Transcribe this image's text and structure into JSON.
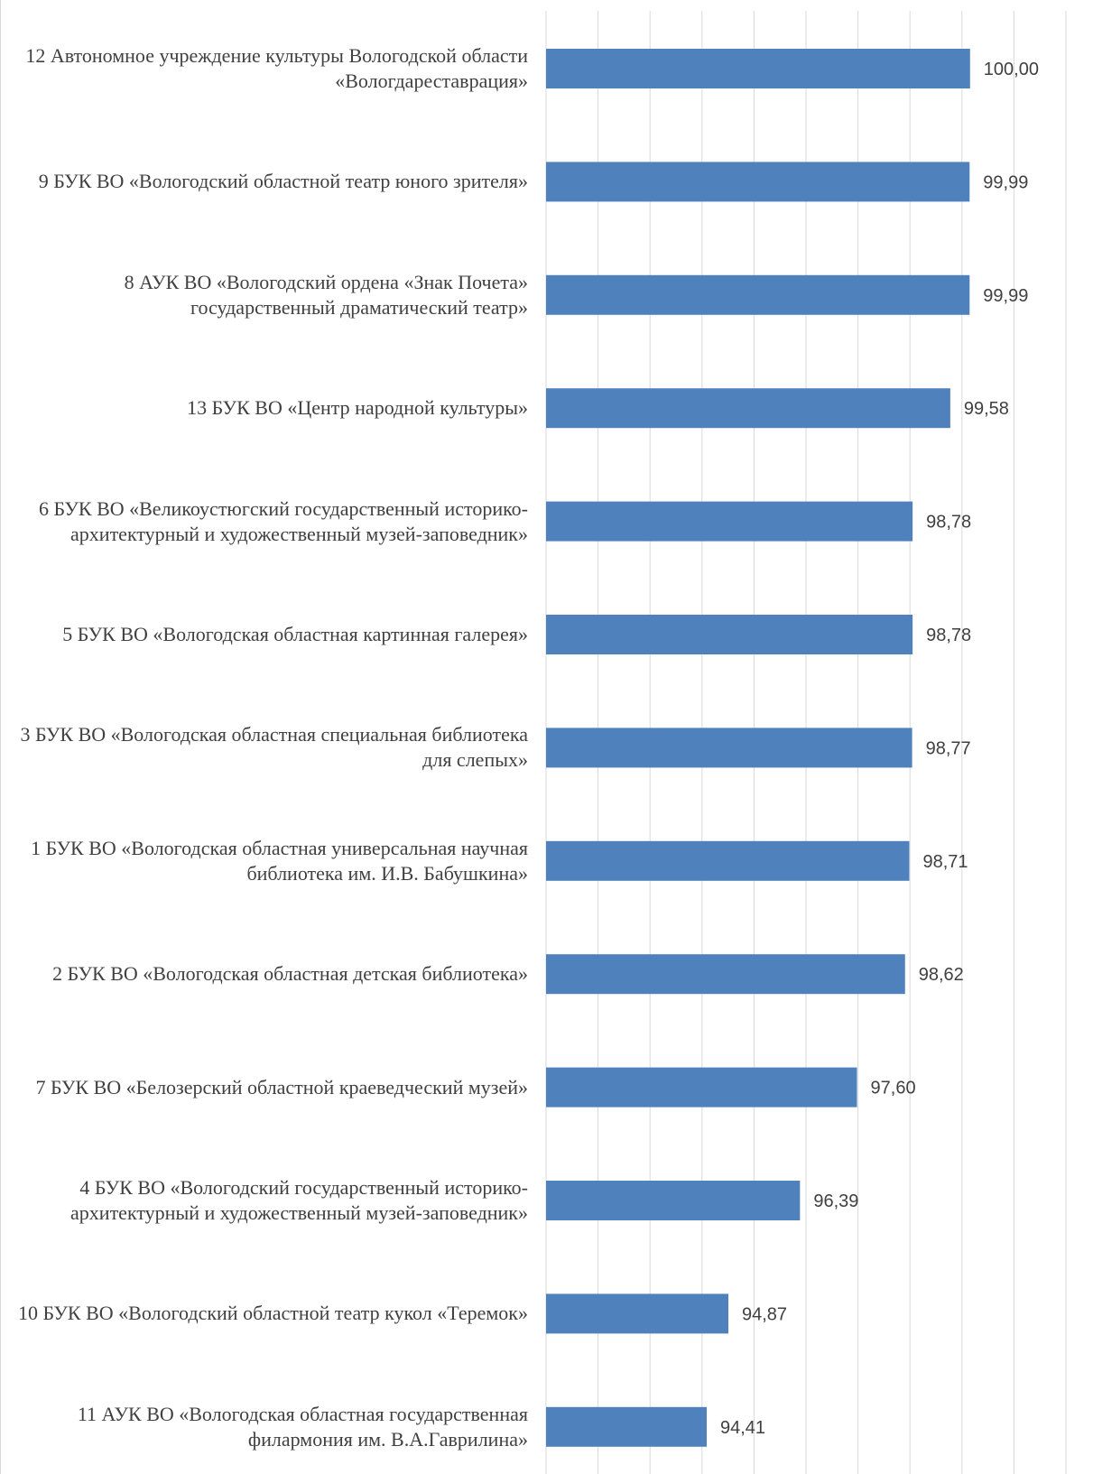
{
  "chart_data": {
    "type": "bar",
    "orientation": "horizontal",
    "title": "",
    "xlabel": "",
    "ylabel": "",
    "xlim": [
      91,
      101
    ],
    "grid": true,
    "legend": "none",
    "bar_color": "#4f81bd",
    "categories": [
      "12 Автономное учреждение культуры Вологодской области «Вологдареставрация»",
      "9 БУК ВО «Вологодский областной театр юного зрителя»",
      "8 АУК ВО «Вологодский ордена «Знак Почета» государственный драматический театр»",
      "13 БУК ВО «Центр народной культуры»",
      "6 БУК ВО «Великоустюгский государственный историко-архитектурный и художественный музей-заповедник»",
      "5 БУК ВО «Вологодская областная картинная галерея»",
      "3 БУК ВО «Вологодская областная специальная библиотека для слепых»",
      "1 БУК ВО «Вологодская областная универсальная научная библиотека им. И.В. Бабушкина»",
      "2 БУК ВО «Вологодская областная детская библиотека»",
      "7 БУК ВО «Белозерский областной краеведческий музей»",
      "4 БУК ВО «Вологодский государственный историко-архитектурный и художественный музей-заповедник»",
      "10 БУК ВО «Вологодский областной театр кукол «Теремок»",
      "11 АУК ВО «Вологодская областная государственная филармония им. В.А.Гаврилина»"
    ],
    "values": [
      100.0,
      99.99,
      99.99,
      99.58,
      98.78,
      98.78,
      98.77,
      98.71,
      98.62,
      97.6,
      96.39,
      94.87,
      94.41
    ],
    "data_labels": [
      "100,00",
      "99,99",
      "99,99",
      "99,58",
      "98,78",
      "98,78",
      "98,77",
      "98,71",
      "98,62",
      "97,60",
      "96,39",
      "94,87",
      "94,41"
    ]
  }
}
